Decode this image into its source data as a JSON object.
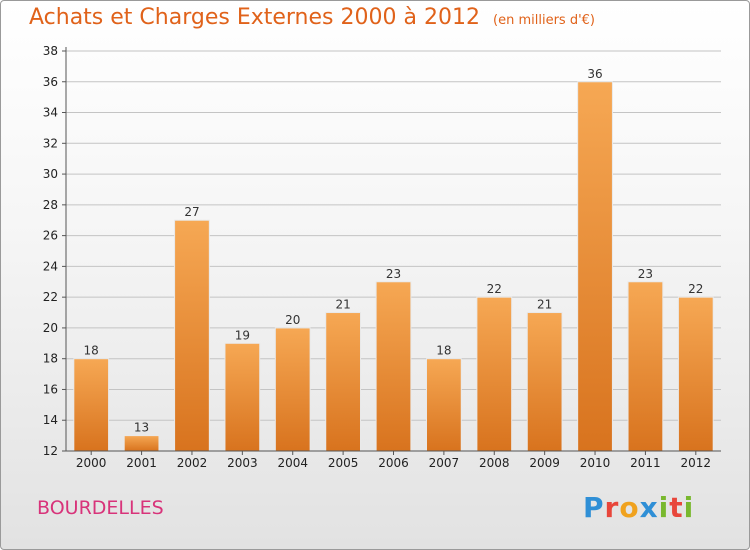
{
  "header": {
    "title": "Achats et Charges Externes 2000 à 2012",
    "subtitle": "(en milliers d'€)"
  },
  "footer": {
    "place": "BOURDELLES",
    "brand": "Proxiti",
    "brand_letters": [
      {
        "ch": "P",
        "color": "#2f8fd6"
      },
      {
        "ch": "r",
        "color": "#e8463b"
      },
      {
        "ch": "o",
        "color": "#f0a21e"
      },
      {
        "ch": "x",
        "color": "#2f8fd6"
      },
      {
        "ch": "i",
        "color": "#79b82e"
      },
      {
        "ch": "t",
        "color": "#e8463b"
      },
      {
        "ch": "i",
        "color": "#79b82e"
      }
    ]
  },
  "colors": {
    "bar_light": "#f6a854",
    "bar_dark": "#d8731e",
    "title": "#e0621a",
    "place": "#d8337a"
  },
  "chart_data": {
    "type": "bar",
    "title": "Achats et Charges Externes 2000 à 2012",
    "subtitle": "(en milliers d'€)",
    "categories": [
      "2000",
      "2001",
      "2002",
      "2003",
      "2004",
      "2005",
      "2006",
      "2007",
      "2008",
      "2009",
      "2010",
      "2011",
      "2012"
    ],
    "values": [
      18,
      13,
      27,
      19,
      20,
      21,
      23,
      18,
      22,
      21,
      36,
      23,
      22
    ],
    "ylim": [
      12,
      38
    ],
    "yticks": [
      12,
      14,
      16,
      18,
      20,
      22,
      24,
      26,
      28,
      30,
      32,
      34,
      36,
      38
    ],
    "grid": true,
    "xlabel": "",
    "ylabel": ""
  }
}
